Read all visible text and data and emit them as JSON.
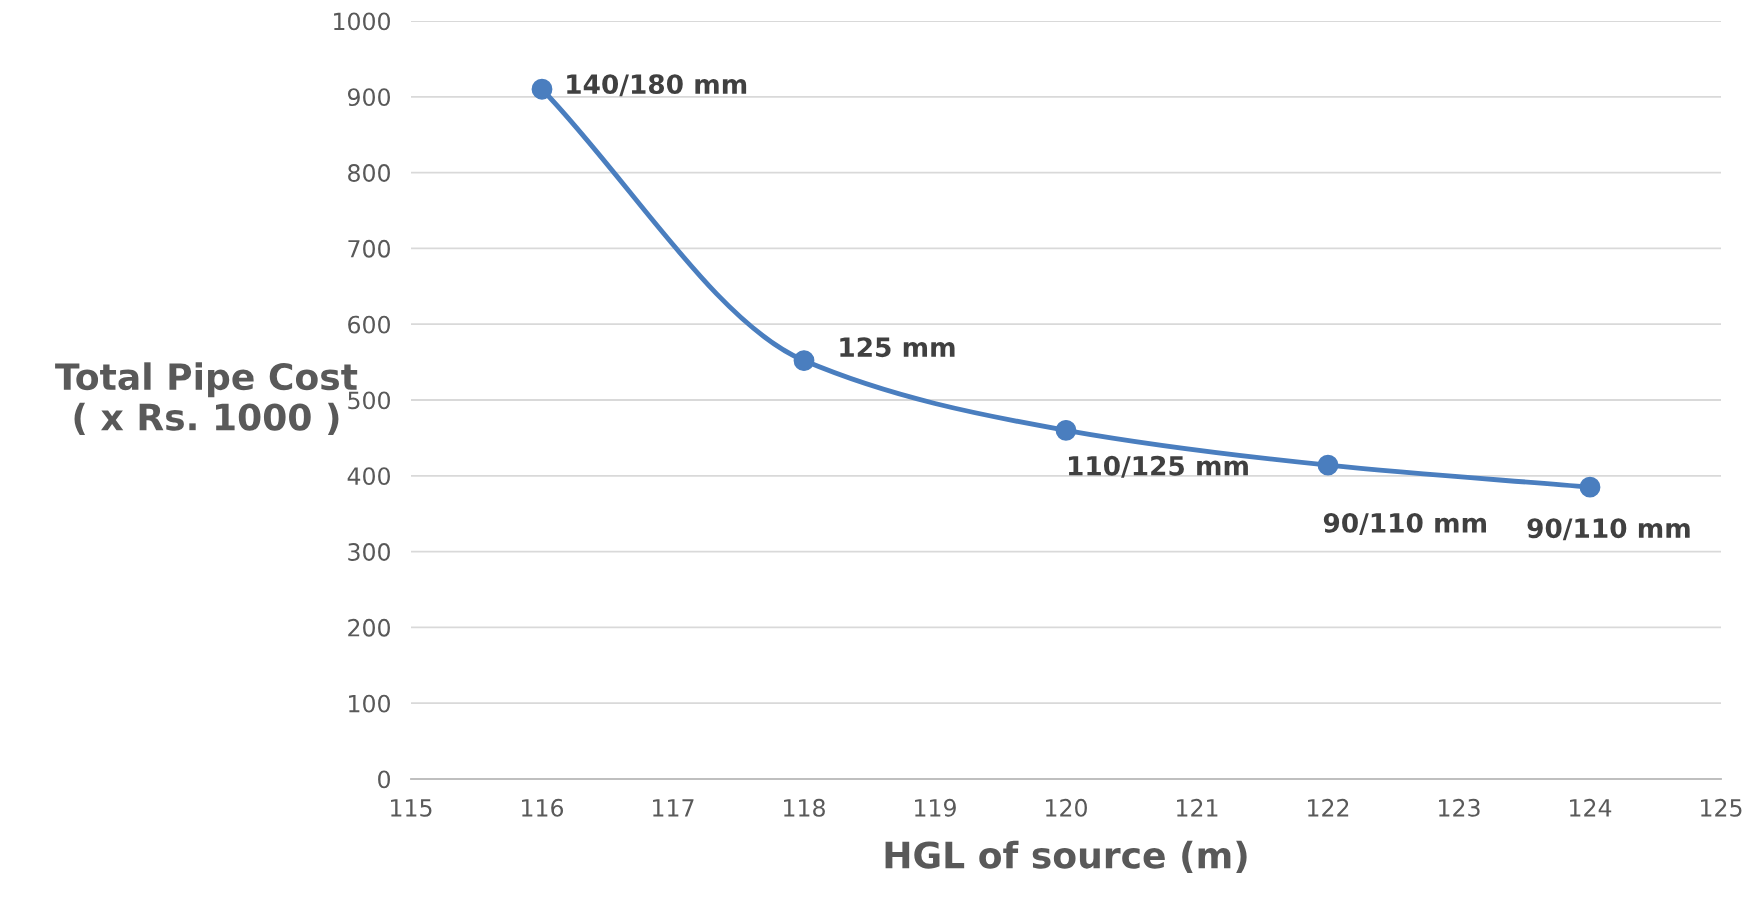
{
  "chart_data": {
    "type": "line",
    "xlabel": "HGL of source (m)",
    "ylabel": "Total Pipe Cost\n( x Rs. 1000 )",
    "x": [
      116,
      118,
      120,
      122,
      124
    ],
    "series": [
      {
        "color": "#4a7ebf",
        "values": [
          910,
          552,
          460,
          414,
          385
        ]
      }
    ],
    "xlim": [
      115,
      125
    ],
    "xticks": [
      115,
      116,
      117,
      118,
      119,
      120,
      121,
      122,
      123,
      124,
      125
    ],
    "ylim": [
      0,
      1000
    ],
    "yticks": [
      0,
      100,
      200,
      300,
      400,
      500,
      600,
      700,
      800,
      900,
      1000
    ],
    "grid": "y",
    "marker": "circle",
    "line_style": "solid",
    "annotations": [
      {
        "text": "140/180 mm",
        "x": 116,
        "y": 910
      },
      {
        "text": "125 mm",
        "x": 118,
        "y": 552
      },
      {
        "text": "110/125 mm",
        "x": 120,
        "y": 460
      },
      {
        "text": "90/110 mm",
        "x": 122,
        "y": 414
      },
      {
        "text": "90/110 mm",
        "x": 124,
        "y": 385
      }
    ]
  }
}
